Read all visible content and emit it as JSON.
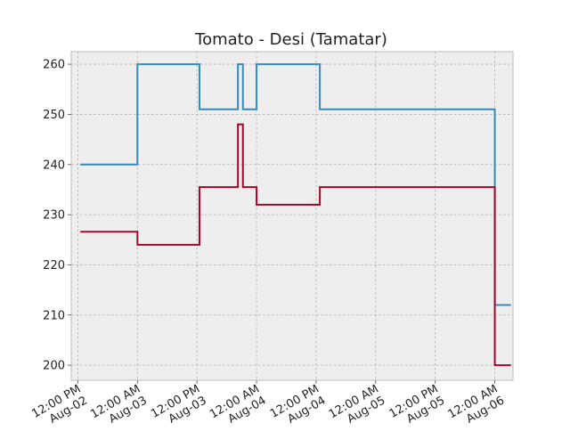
{
  "chart_data": {
    "type": "line",
    "step": "post",
    "title": "Tomato - Desi (Tamatar)",
    "xlabel": "",
    "ylabel": "",
    "grid": true,
    "legend": "none",
    "style": {
      "background": "#eeeeee",
      "grid_color": "#b0b0b0",
      "frame_color": "#bcbcbc"
    },
    "x_ticks": [
      {
        "value": "2023-08-02T12:00",
        "line1": "12:00 PM",
        "line2": "Aug-02"
      },
      {
        "value": "2023-08-03T00:00",
        "line1": "12:00 AM",
        "line2": "Aug-03"
      },
      {
        "value": "2023-08-03T12:00",
        "line1": "12:00 PM",
        "line2": "Aug-03"
      },
      {
        "value": "2023-08-04T00:00",
        "line1": "12:00 AM",
        "line2": "Aug-04"
      },
      {
        "value": "2023-08-04T12:00",
        "line1": "12:00 PM",
        "line2": "Aug-04"
      },
      {
        "value": "2023-08-05T00:00",
        "line1": "12:00 AM",
        "line2": "Aug-05"
      },
      {
        "value": "2023-08-05T12:00",
        "line1": "12:00 PM",
        "line2": "Aug-05"
      },
      {
        "value": "2023-08-06T00:00",
        "line1": "12:00 AM",
        "line2": "Aug-06"
      }
    ],
    "xlim": [
      "2023-08-02T10:40",
      "2023-08-06T03:40"
    ],
    "ylim": [
      197,
      262.5
    ],
    "y_ticks": [
      200,
      210,
      220,
      230,
      240,
      250,
      260
    ],
    "series": [
      {
        "color": "#348abd",
        "points": [
          {
            "x": "2023-08-02T12:30",
            "y": 240
          },
          {
            "x": "2023-08-03T00:00",
            "y": 260
          },
          {
            "x": "2023-08-03T12:30",
            "y": 251
          },
          {
            "x": "2023-08-03T20:15",
            "y": 260
          },
          {
            "x": "2023-08-03T21:15",
            "y": 251
          },
          {
            "x": "2023-08-04T00:00",
            "y": 260
          },
          {
            "x": "2023-08-04T12:45",
            "y": 251
          },
          {
            "x": "2023-08-06T00:00",
            "y": 212
          },
          {
            "x": "2023-08-06T03:15",
            "y": 212
          }
        ]
      },
      {
        "color": "#a60628",
        "points": [
          {
            "x": "2023-08-02T12:30",
            "y": 226.6
          },
          {
            "x": "2023-08-03T00:00",
            "y": 224
          },
          {
            "x": "2023-08-03T12:30",
            "y": 235.5
          },
          {
            "x": "2023-08-03T20:15",
            "y": 248
          },
          {
            "x": "2023-08-03T21:15",
            "y": 235.5
          },
          {
            "x": "2023-08-04T00:00",
            "y": 232
          },
          {
            "x": "2023-08-04T12:45",
            "y": 235.5
          },
          {
            "x": "2023-08-06T00:00",
            "y": 200
          },
          {
            "x": "2023-08-06T03:15",
            "y": 200
          }
        ]
      }
    ]
  }
}
